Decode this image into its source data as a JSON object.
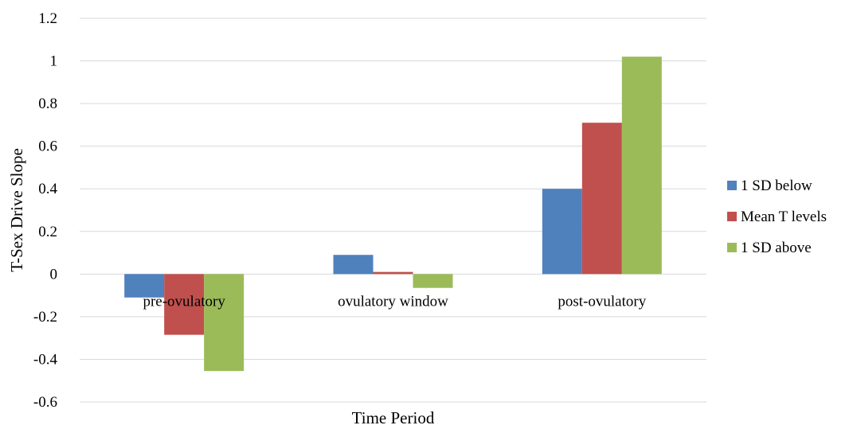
{
  "chart_data": {
    "type": "bar",
    "title": "",
    "xlabel": "Time Period",
    "ylabel": "T-Sex Drive Slope",
    "categories": [
      "pre-ovulatory",
      "ovulatory window",
      "post-ovulatory"
    ],
    "series": [
      {
        "name": "1 SD below",
        "color": "#4F81BD",
        "values": [
          -0.11,
          0.09,
          0.4
        ]
      },
      {
        "name": "Mean T levels",
        "color": "#C0504D",
        "values": [
          -0.285,
          0.01,
          0.71
        ]
      },
      {
        "name": "1 SD above",
        "color": "#9BBB59",
        "values": [
          -0.455,
          -0.065,
          1.02
        ]
      }
    ],
    "ylim": [
      -0.6,
      1.2
    ],
    "yticks": [
      "1.2",
      "1",
      "0.8",
      "0.6",
      "0.4",
      "0.2",
      "0",
      "-0.2",
      "-0.4",
      "-0.6"
    ],
    "ytick_values": [
      1.2,
      1.0,
      0.8,
      0.6,
      0.4,
      0.2,
      0,
      -0.2,
      -0.4,
      -0.6
    ],
    "grid": true,
    "legend_position": "right"
  }
}
